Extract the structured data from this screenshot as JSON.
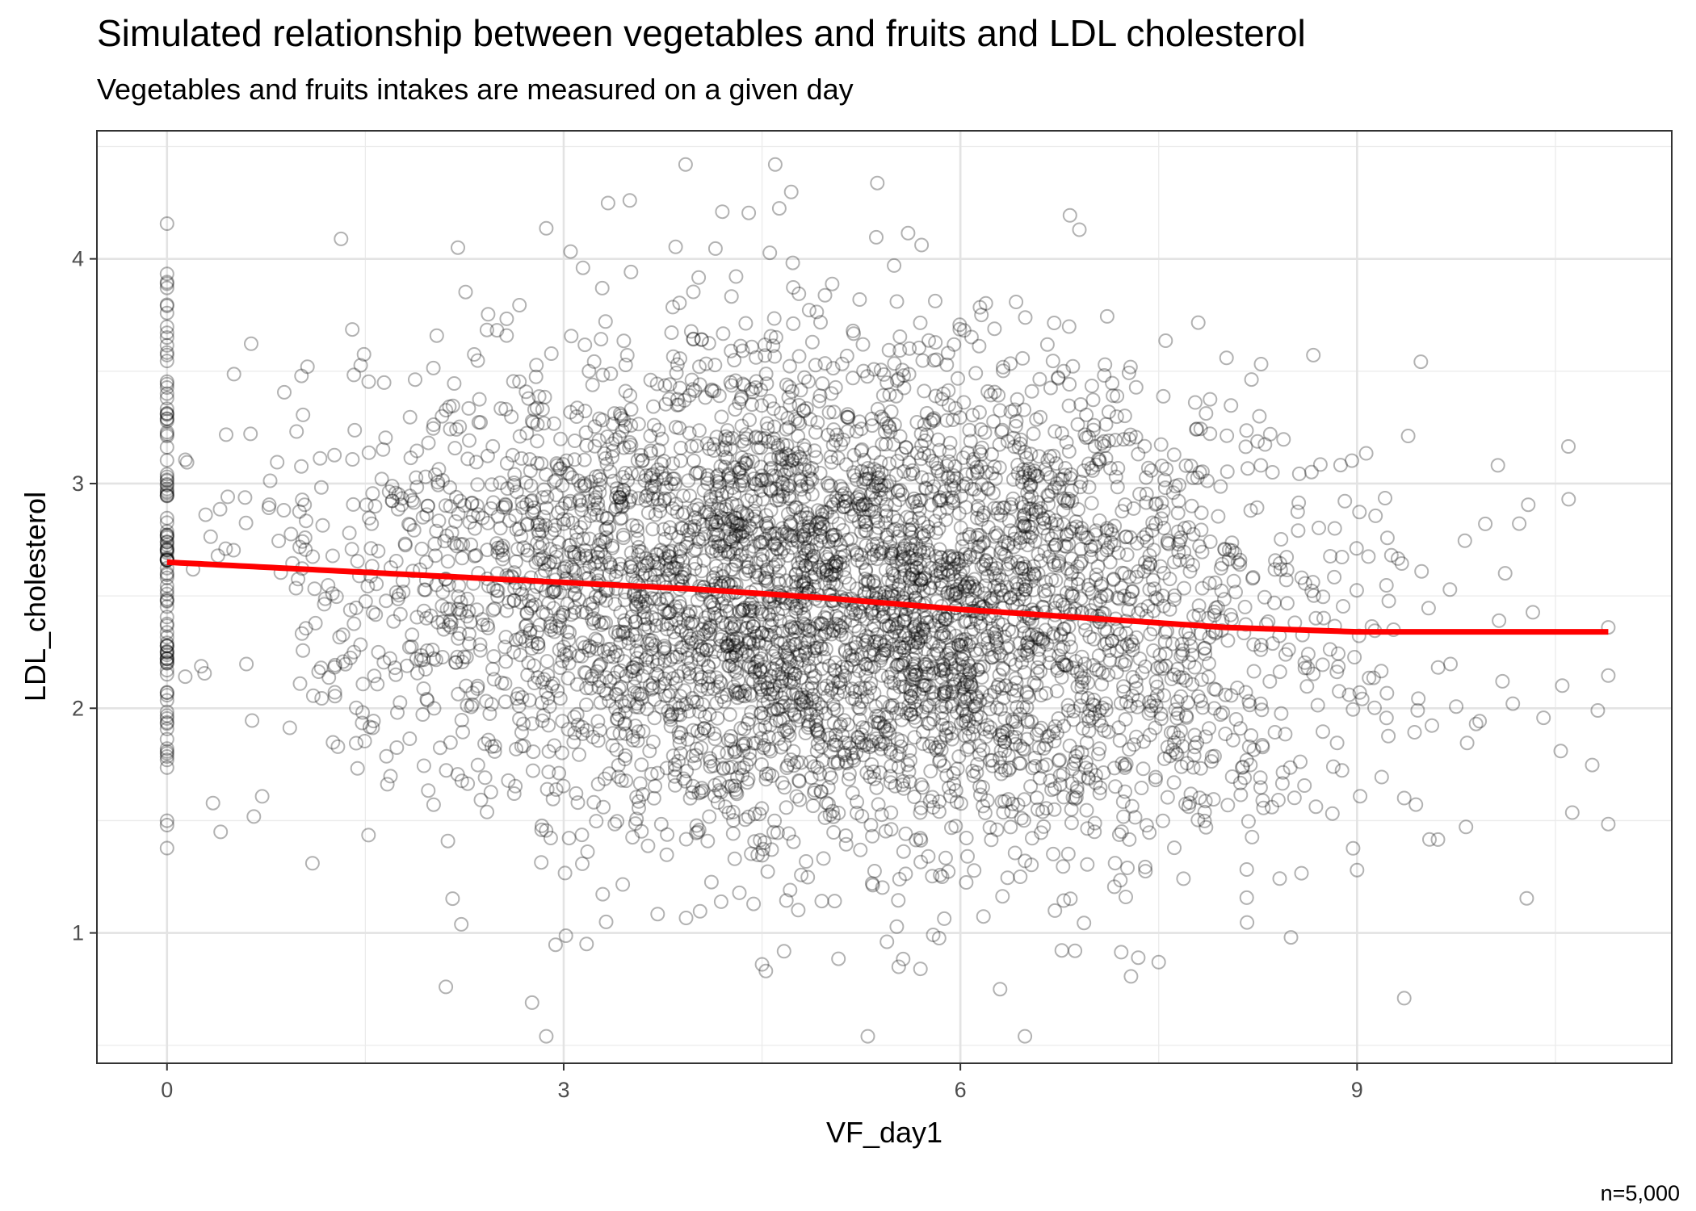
{
  "chart_data": {
    "type": "scatter",
    "title": "Simulated relationship between vegetables and fruits and LDL cholesterol",
    "subtitle": "Vegetables and fruits intakes are measured on a given day",
    "xlabel": "VF_day1",
    "ylabel": "LDL_cholesterol",
    "caption": "n=5,000",
    "xlim": [
      -0.53,
      11.38
    ],
    "ylim": [
      0.42,
      4.57
    ],
    "x_ticks": [
      0,
      3,
      6,
      9
    ],
    "y_ticks": [
      1,
      2,
      3,
      4
    ],
    "x_tick_labels": [
      "0",
      "3",
      "6",
      "9"
    ],
    "y_tick_labels": [
      "1",
      "2",
      "3",
      "4"
    ],
    "grid": true,
    "n_points": 5000,
    "point_style": {
      "shape": "open-circle",
      "color": "#000000",
      "alpha": 0.3
    },
    "points_summary": {
      "x_mean": 5.0,
      "x_sd": 1.8,
      "x_min": 0,
      "x_max": 10.9,
      "y_mean": 2.5,
      "y_sd": 0.55,
      "y_min": 0.54,
      "y_max": 4.42
    },
    "notable_points": [
      {
        "x": 4.6,
        "y": 4.42
      },
      {
        "x": 3.5,
        "y": 4.26
      },
      {
        "x": 4.2,
        "y": 4.21
      },
      {
        "x": 6.9,
        "y": 4.13
      },
      {
        "x": 2.2,
        "y": 4.05
      },
      {
        "x": 0,
        "y": 3.22
      },
      {
        "x": 0,
        "y": 1.48
      },
      {
        "x": 5.3,
        "y": 0.54
      },
      {
        "x": 6.3,
        "y": 0.75
      },
      {
        "x": 10.6,
        "y": 2.93
      },
      {
        "x": 10.9,
        "y": 2.36
      },
      {
        "x": 10.1,
        "y": 2.12
      },
      {
        "x": 1.1,
        "y": 1.31
      },
      {
        "x": 8.5,
        "y": 0.98
      },
      {
        "x": 4.5,
        "y": 0.86
      },
      {
        "x": 7.5,
        "y": 0.87
      },
      {
        "x": 9.0,
        "y": 1.28
      },
      {
        "x": 9.9,
        "y": 1.93
      }
    ],
    "series": [
      {
        "type": "smooth-line",
        "color": "#ff0000",
        "x": [
          0,
          1,
          2,
          3,
          4,
          5,
          6,
          7,
          8,
          9,
          10,
          10.9
        ],
        "y": [
          2.65,
          2.62,
          2.59,
          2.56,
          2.53,
          2.49,
          2.44,
          2.4,
          2.36,
          2.34,
          2.34,
          2.34
        ]
      }
    ]
  }
}
